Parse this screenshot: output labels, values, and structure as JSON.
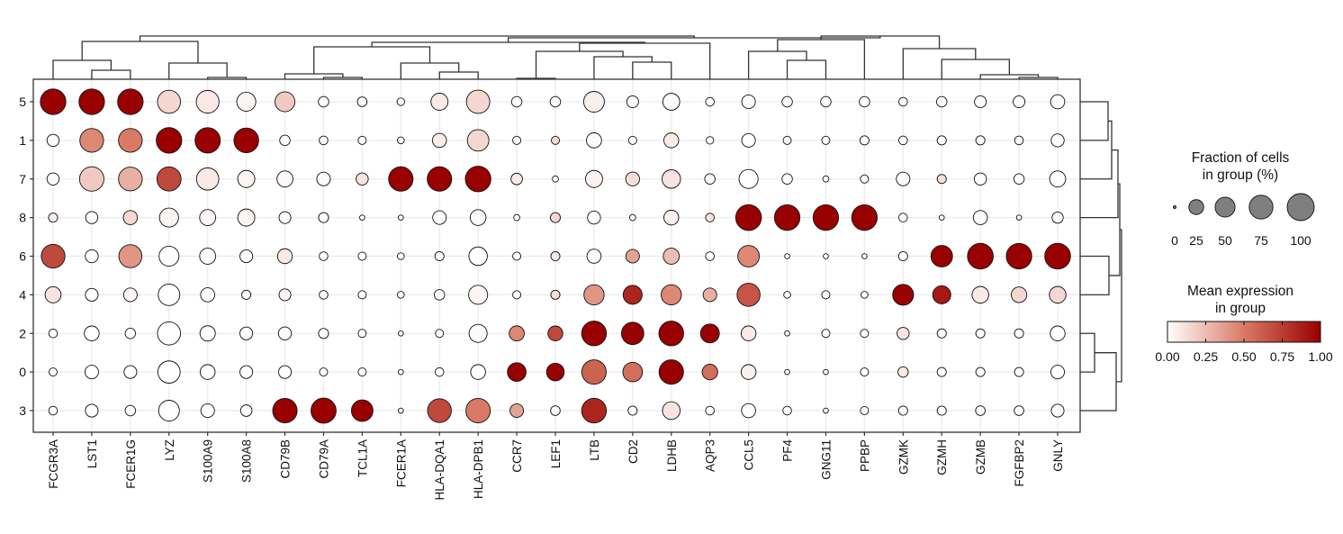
{
  "chart_data": {
    "type": "dotplot",
    "title": "",
    "xlabel": "",
    "ylabel": "",
    "genes": [
      "FCGR3A",
      "LST1",
      "FCER1G",
      "LYZ",
      "S100A9",
      "S100A8",
      "CD79B",
      "CD79A",
      "TCL1A",
      "FCER1A",
      "HLA-DQA1",
      "HLA-DPB1",
      "CCR7",
      "LEF1",
      "LTB",
      "CD2",
      "LDHB",
      "AQP3",
      "CCL5",
      "PF4",
      "GNG11",
      "PPBP",
      "GZMK",
      "GZMH",
      "GZMB",
      "FGFBP2",
      "GNLY"
    ],
    "groups": [
      "5",
      "1",
      "7",
      "8",
      "6",
      "4",
      "2",
      "0",
      "3"
    ],
    "grid": true,
    "fraction_pct": [
      [
        88,
        88,
        88,
        70,
        68,
        45,
        50,
        10,
        8,
        4,
        35,
        72,
        10,
        10,
        55,
        14,
        34,
        6,
        20,
        10,
        10,
        10,
        6,
        10,
        14,
        14,
        22
      ],
      [
        15,
        75,
        75,
        88,
        86,
        82,
        10,
        6,
        5,
        3,
        22,
        60,
        5,
        5,
        26,
        5,
        25,
        4,
        20,
        5,
        5,
        7,
        6,
        7,
        7,
        6,
        18
      ],
      [
        15,
        80,
        75,
        78,
        65,
        35,
        30,
        20,
        15,
        80,
        80,
        88,
        13,
        2,
        35,
        21,
        42,
        10,
        45,
        10,
        2,
        5,
        20,
        7,
        15,
        10,
        30
      ],
      [
        7,
        15,
        22,
        45,
        30,
        35,
        14,
        9,
        1,
        1,
        20,
        29,
        2,
        9,
        18,
        2,
        25,
        6,
        90,
        88,
        88,
        88,
        6,
        1,
        22,
        1,
        12
      ],
      [
        75,
        18,
        70,
        50,
        30,
        17,
        25,
        6,
        5,
        3,
        7,
        42,
        5,
        7,
        22,
        20,
        30,
        6,
        60,
        1,
        1,
        1,
        7,
        60,
        90,
        88,
        90
      ],
      [
        30,
        17,
        20,
        60,
        22,
        7,
        14,
        6,
        5,
        3,
        10,
        45,
        5,
        7,
        52,
        45,
        52,
        20,
        70,
        3,
        5,
        3,
        56,
        40,
        33,
        28,
        33
      ],
      [
        6,
        25,
        10,
        70,
        27,
        17,
        18,
        9,
        5,
        1,
        5,
        40,
        26,
        25,
        82,
        65,
        82,
        44,
        25,
        1,
        5,
        5,
        15,
        7,
        7,
        7,
        25
      ],
      [
        5,
        20,
        17,
        65,
        25,
        17,
        17,
        5,
        5,
        1,
        6,
        25,
        43,
        38,
        80,
        48,
        80,
        28,
        25,
        1,
        1,
        5,
        10,
        7,
        7,
        7,
        20
      ],
      [
        6,
        17,
        10,
        55,
        20,
        13,
        80,
        85,
        60,
        1,
        75,
        80,
        20,
        8,
        82,
        7,
        38,
        6,
        22,
        6,
        1,
        5,
        7,
        7,
        8,
        8,
        17
      ]
    ],
    "mean_expression": [
      [
        1.0,
        1.0,
        1.0,
        0.15,
        0.08,
        0.04,
        0.2,
        0.0,
        0.0,
        0.0,
        0.08,
        0.15,
        0.0,
        0.02,
        0.06,
        0.02,
        0.02,
        0.0,
        0.02,
        0.0,
        0.0,
        0.0,
        0.0,
        0.0,
        0.0,
        0.0,
        0.0
      ],
      [
        0.02,
        0.45,
        0.5,
        1.0,
        1.0,
        1.0,
        0.0,
        0.0,
        0.0,
        0.0,
        0.07,
        0.15,
        0.0,
        0.15,
        0.02,
        0.0,
        0.08,
        0.0,
        0.0,
        0.0,
        0.0,
        0.0,
        0.0,
        0.0,
        0.0,
        0.0,
        0.0
      ],
      [
        0.0,
        0.2,
        0.3,
        0.7,
        0.08,
        0.04,
        0.03,
        0.02,
        0.1,
        1.0,
        1.0,
        1.0,
        0.08,
        0.0,
        0.05,
        0.12,
        0.1,
        0.03,
        0.0,
        0.0,
        0.0,
        0.0,
        0.0,
        0.12,
        0.0,
        0.0,
        0.0
      ],
      [
        0.06,
        0.02,
        0.15,
        0.04,
        0.03,
        0.04,
        0.02,
        0.0,
        0.0,
        0.0,
        0.0,
        0.02,
        0.0,
        0.15,
        0.0,
        0.0,
        0.06,
        0.1,
        1.0,
        1.0,
        1.0,
        1.0,
        0.0,
        0.0,
        0.02,
        0.0,
        0.0
      ],
      [
        0.7,
        0.0,
        0.4,
        0.0,
        0.0,
        0.0,
        0.08,
        0.0,
        0.0,
        0.0,
        0.0,
        0.0,
        0.0,
        0.08,
        0.02,
        0.35,
        0.25,
        0.0,
        0.45,
        0.0,
        0.0,
        0.0,
        0.0,
        1.0,
        1.0,
        1.0,
        1.0
      ],
      [
        0.1,
        0.0,
        0.03,
        0.0,
        0.0,
        0.0,
        0.04,
        0.0,
        0.0,
        0.0,
        0.0,
        0.04,
        0.0,
        0.12,
        0.4,
        0.85,
        0.45,
        0.3,
        0.65,
        0.0,
        0.0,
        0.0,
        1.0,
        0.9,
        0.08,
        0.15,
        0.15
      ],
      [
        0.0,
        0.0,
        0.0,
        0.0,
        0.0,
        0.0,
        0.02,
        0.0,
        0.0,
        0.0,
        0.0,
        0.02,
        0.45,
        0.7,
        1.0,
        1.0,
        1.0,
        1.0,
        0.08,
        0.0,
        0.0,
        0.0,
        0.1,
        0.0,
        0.0,
        0.0,
        0.0
      ],
      [
        0.0,
        0.0,
        0.0,
        0.0,
        0.0,
        0.0,
        0.0,
        0.0,
        0.0,
        0.0,
        0.0,
        0.0,
        1.0,
        1.0,
        0.6,
        0.55,
        1.0,
        0.55,
        0.06,
        0.0,
        0.0,
        0.0,
        0.08,
        0.0,
        0.0,
        0.0,
        0.0
      ],
      [
        0.0,
        0.0,
        0.0,
        0.0,
        0.0,
        0.0,
        1.0,
        1.0,
        1.0,
        0.0,
        0.7,
        0.5,
        0.35,
        0.0,
        0.85,
        0.0,
        0.1,
        0.0,
        0.0,
        0.0,
        0.0,
        0.0,
        0.0,
        0.0,
        0.0,
        0.0,
        0.0
      ]
    ],
    "size_legend": {
      "title_line1": "Fraction of cells",
      "title_line2": "in group (%)",
      "values": [
        0,
        25,
        50,
        75,
        100
      ],
      "labels": [
        "0",
        "25",
        "50",
        "75",
        "100"
      ]
    },
    "color_legend": {
      "title_line1": "Mean expression",
      "title_line2": "in group",
      "range": [
        0,
        1
      ],
      "labels": [
        "0.00",
        "0.25",
        "0.50",
        "0.75",
        "1.00"
      ],
      "low_color": "#ffffff",
      "high_color": "#990000"
    },
    "column_dendrogram": "hierarchical clustering of genes (shown above plot)",
    "row_dendrogram": "hierarchical clustering of groups (shown right of plot)"
  }
}
